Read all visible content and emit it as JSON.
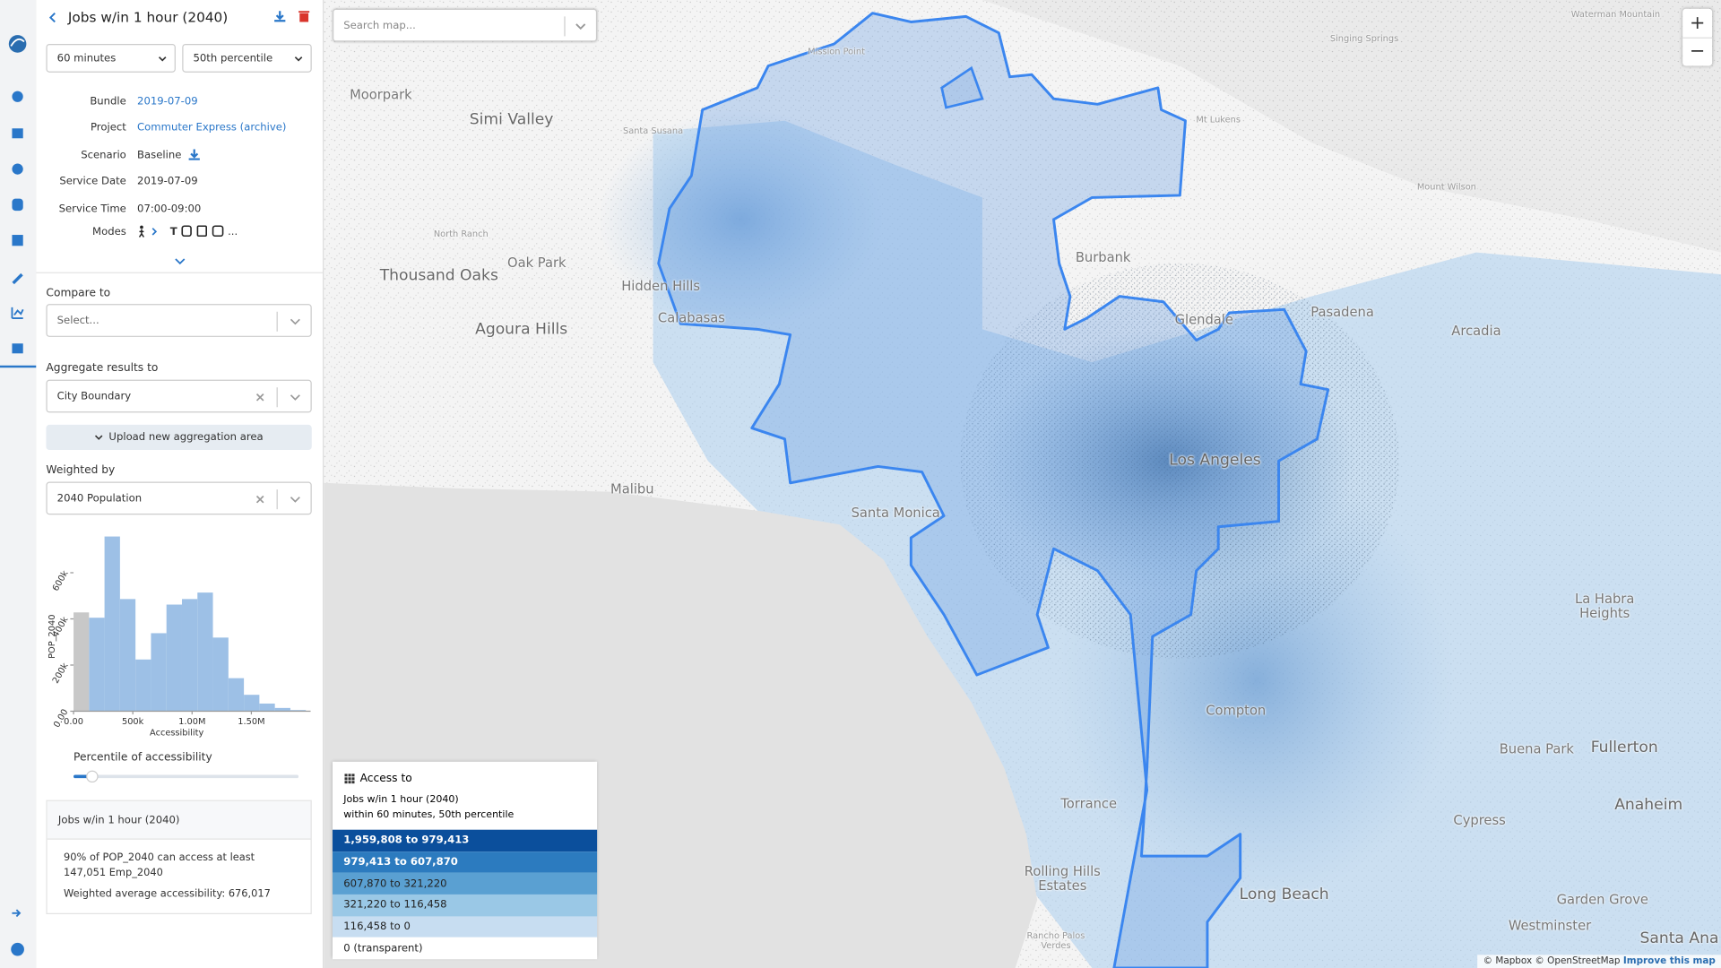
{
  "panel": {
    "title": "Jobs w/in 1 hour (2040)",
    "time_select": "60 minutes",
    "percentile_select": "50th percentile",
    "details": [
      {
        "label": "Bundle",
        "value": "2019-07-09"
      },
      {
        "label": "Project",
        "value": "Commuter Express (archive)"
      },
      {
        "label": "Scenario",
        "value": "Baseline"
      },
      {
        "label": "Service Date",
        "value": "2019-07-09"
      },
      {
        "label": "Service Time",
        "value": "07:00-09:00"
      }
    ],
    "modes": {
      "label": "Modes",
      "items": [
        "T",
        "..."
      ]
    },
    "compare_label": "Compare to",
    "compare_placeholder": "Select...",
    "aggregate_label": "Aggregate results to",
    "aggregate_value": "City Boundary",
    "upload_button": "Upload new aggregation area",
    "weighted_label": "Weighted by",
    "weighted_value": "2040 Population",
    "histogram": {
      "type": "histogram",
      "y_label": "POP_2040",
      "x_label": "Accessibility",
      "bins": [
        0,
        130654,
        261308,
        391962,
        522616,
        653269,
        783923,
        914577,
        1045231,
        1175885,
        1306539,
        1437193,
        1567846,
        1698500,
        1829154,
        1959808
      ],
      "counts": [
        428000,
        405000,
        757000,
        486000,
        224000,
        338000,
        462000,
        486000,
        514000,
        319000,
        143000,
        71000,
        33000,
        14000,
        5000
      ],
      "bar_colors": [
        "#c8c8c8",
        "#9dc0e6",
        "#9dc0e6",
        "#9dc0e6",
        "#9dc0e6",
        "#9dc0e6",
        "#9dc0e6",
        "#9dc0e6",
        "#9dc0e6",
        "#9dc0e6",
        "#9dc0e6",
        "#9dc0e6",
        "#9dc0e6",
        "#9dc0e6",
        "#9dc0e6"
      ],
      "xlim": [
        0,
        2000000
      ],
      "ylim": [
        0,
        780000
      ],
      "xticks": [
        {
          "value": 0,
          "label": "0.00"
        },
        {
          "value": 500000,
          "label": "500k"
        },
        {
          "value": 1000000,
          "label": "1.00M"
        },
        {
          "value": 1500000,
          "label": "1.50M"
        }
      ],
      "yticks": [
        {
          "value": 0,
          "label": "0.00"
        },
        {
          "value": 200000,
          "label": "200k"
        },
        {
          "value": 400000,
          "label": "400k"
        },
        {
          "value": 600000,
          "label": "600k"
        }
      ]
    },
    "slider_label": "Percentile of accessibility",
    "summary": {
      "title": "Jobs w/in 1 hour (2040)",
      "line1": "90% of POP_2040 can access at least 147,051 Emp_2040",
      "line2": "Weighted average accessibility: 676,017"
    }
  },
  "map": {
    "search_placeholder": "Search map...",
    "zoom_in": "+",
    "zoom_out": "−",
    "labels": [
      "Waterman Mountain",
      "Mission Point",
      "Singing Springs",
      "Moorpark",
      "Simi Valley",
      "Santa Susana",
      "Mt Lukens",
      "Mount Wilson",
      "North Ranch",
      "Thousand Oaks",
      "Oak Park",
      "Hidden Hills",
      "Burbank",
      "Glendale",
      "Pasadena",
      "Arcadia",
      "Agoura Hills",
      "Calabasas",
      "Los Angeles",
      "Malibu",
      "Santa Monica",
      "Compton",
      "Torrance",
      "Rolling Hills Estates",
      "Rancho Palos Verdes",
      "Long Beach",
      "Buena Park",
      "Fullerton",
      "La Habra Heights",
      "Anaheim",
      "Cypress",
      "Garden Grove",
      "Westminster",
      "Santa Ana"
    ],
    "attribution": "© Mapbox © OpenStreetMap",
    "attribution_link": "Improve this map"
  },
  "legend": {
    "title": "Access to",
    "subtitle": "Jobs w/in 1 hour (2040)",
    "subtitle2": "within 60 minutes, 50th percentile",
    "bins": [
      {
        "label": "1,959,808 to 979,413",
        "color": "#0b4f9c"
      },
      {
        "label": "979,413 to 607,870",
        "color": "#2c7bbf"
      },
      {
        "label": "607,870 to 321,220",
        "color": "#5aa0d2"
      },
      {
        "label": "321,220 to 116,458",
        "color": "#9ac8e6"
      },
      {
        "label": "116,458 to 0",
        "color": "#c7ddf1"
      },
      {
        "label": "0 (transparent)",
        "color": "#ffffff"
      }
    ]
  }
}
